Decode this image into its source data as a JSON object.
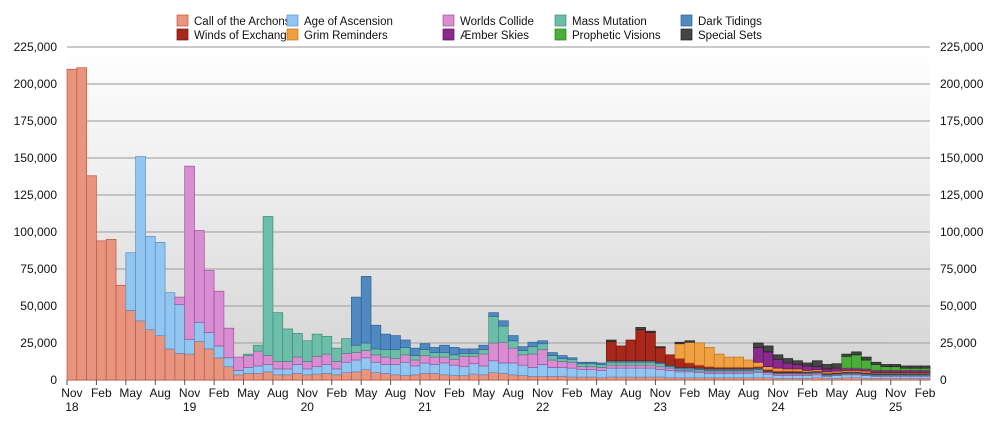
{
  "chart_data": {
    "type": "bar",
    "stacked": true,
    "title": "",
    "xlabel": "",
    "ylabel": "",
    "ylim": [
      0,
      225000
    ],
    "y_ticks": [
      "0",
      "25,000",
      "50,000",
      "75,000",
      "100,000",
      "125,000",
      "150,000",
      "175,000",
      "200,000",
      "225,000"
    ],
    "y_axis_sides": "left-and-right",
    "grid": true,
    "legend_placement": "top",
    "x_range": [
      "Nov 2018",
      "Feb 2026"
    ],
    "x_interval": "monthly",
    "x_ticks": [
      {
        "month": "Nov",
        "year": "18"
      },
      {
        "month": "Feb",
        "year": ""
      },
      {
        "month": "May",
        "year": ""
      },
      {
        "month": "Aug",
        "year": ""
      },
      {
        "month": "Nov",
        "year": "19"
      },
      {
        "month": "Feb",
        "year": ""
      },
      {
        "month": "May",
        "year": ""
      },
      {
        "month": "Aug",
        "year": ""
      },
      {
        "month": "Nov",
        "year": "20"
      },
      {
        "month": "Feb",
        "year": ""
      },
      {
        "month": "May",
        "year": ""
      },
      {
        "month": "Aug",
        "year": ""
      },
      {
        "month": "Nov",
        "year": "21"
      },
      {
        "month": "Feb",
        "year": ""
      },
      {
        "month": "May",
        "year": ""
      },
      {
        "month": "Aug",
        "year": ""
      },
      {
        "month": "Nov",
        "year": "22"
      },
      {
        "month": "Feb",
        "year": ""
      },
      {
        "month": "May",
        "year": ""
      },
      {
        "month": "Aug",
        "year": ""
      },
      {
        "month": "Nov",
        "year": "23"
      },
      {
        "month": "Feb",
        "year": ""
      },
      {
        "month": "May",
        "year": ""
      },
      {
        "month": "Aug",
        "year": ""
      },
      {
        "month": "Nov",
        "year": "24"
      },
      {
        "month": "Feb",
        "year": ""
      },
      {
        "month": "May",
        "year": ""
      },
      {
        "month": "Aug",
        "year": ""
      },
      {
        "month": "Nov",
        "year": "25"
      },
      {
        "month": "Feb",
        "year": ""
      }
    ],
    "series": [
      {
        "name": "Call of the Archons",
        "color": "#e8957f",
        "stroke": "#c4533d",
        "values": [
          210000,
          211000,
          138000,
          94000,
          95000,
          64000,
          47000,
          40000,
          34000,
          30000,
          21000,
          18000,
          17500,
          26000,
          21000,
          15000,
          9000,
          3500,
          4500,
          4500,
          5500,
          3500,
          3500,
          4500,
          3500,
          4000,
          4500,
          3500,
          5000,
          5500,
          7000,
          5000,
          4500,
          3500,
          3000,
          3500,
          4500,
          4500,
          3500,
          3000,
          3000,
          4000,
          3500,
          5000,
          4500,
          3500,
          3000,
          2500,
          2500,
          2500,
          2500,
          2000,
          2000,
          2000,
          1500,
          2000,
          2000,
          2000,
          2000,
          2000,
          2000,
          1500,
          1500,
          1500,
          1500,
          1500,
          1500,
          1500,
          1500,
          1500,
          1500,
          1500,
          1000,
          1000,
          1000,
          1000,
          1500,
          1000,
          1000,
          1500,
          1500,
          1000,
          1000,
          1000,
          1000,
          1000,
          1000,
          1000
        ]
      },
      {
        "name": "Age of Ascension",
        "color": "#92c5f0",
        "stroke": "#5a8fc4",
        "values": [
          0,
          0,
          0,
          0,
          0,
          0,
          39000,
          111000,
          63000,
          63000,
          38000,
          33000,
          10000,
          13000,
          11000,
          8000,
          6000,
          3000,
          4000,
          5000,
          5000,
          4000,
          4000,
          6000,
          4000,
          5000,
          6000,
          4000,
          7000,
          8000,
          8000,
          7000,
          6000,
          7000,
          9000,
          6000,
          7000,
          6000,
          8000,
          7000,
          6000,
          7000,
          6000,
          8000,
          7000,
          8000,
          7000,
          6000,
          8000,
          6000,
          6000,
          6000,
          5000,
          5000,
          5000,
          6000,
          6000,
          6000,
          6000,
          6000,
          5000,
          5000,
          4000,
          4000,
          3500,
          3000,
          3000,
          3000,
          3000,
          3000,
          3500,
          2500,
          2000,
          2000,
          2000,
          2000,
          2000,
          1500,
          2000,
          2000,
          2000,
          2000,
          1500,
          1500,
          1500,
          1500,
          1500,
          1500
        ]
      },
      {
        "name": "Worlds Collide",
        "color": "#d98dd2",
        "stroke": "#a0509a",
        "values": [
          0,
          0,
          0,
          0,
          0,
          0,
          0,
          0,
          0,
          0,
          0,
          5000,
          117000,
          62000,
          42000,
          37000,
          20000,
          9000,
          8000,
          10000,
          6000,
          5000,
          5000,
          5000,
          5000,
          7000,
          7000,
          5000,
          6000,
          5000,
          5000,
          5000,
          5000,
          4000,
          5000,
          4000,
          5000,
          5000,
          4000,
          4000,
          7000,
          5000,
          8000,
          12000,
          14000,
          10000,
          7000,
          9000,
          10000,
          5000,
          4000,
          4000,
          2000,
          2000,
          2000,
          2000,
          2000,
          2000,
          2000,
          2000,
          2000,
          1500,
          1000,
          1000,
          1000,
          1000,
          1000,
          1000,
          1000,
          1000,
          1000,
          1000,
          1000,
          1000,
          1000,
          1000,
          1000,
          500,
          500,
          500,
          500,
          500,
          500,
          500,
          500,
          500,
          500,
          500
        ]
      },
      {
        "name": "Mass Mutation",
        "color": "#6cbea8",
        "stroke": "#3f8c78",
        "values": [
          0,
          0,
          0,
          0,
          0,
          0,
          0,
          0,
          0,
          0,
          0,
          0,
          0,
          0,
          0,
          0,
          0,
          0,
          1000,
          4000,
          94000,
          33000,
          22000,
          16000,
          14000,
          15000,
          12000,
          9000,
          10000,
          5000,
          5000,
          4000,
          5000,
          6000,
          5000,
          3000,
          4000,
          3000,
          3000,
          3000,
          2000,
          2000,
          3000,
          18000,
          11000,
          5000,
          3000,
          5000,
          4000,
          3000,
          2000,
          2000,
          2000,
          2000,
          2000,
          2000,
          2000,
          2000,
          2000,
          2000,
          2000,
          1000,
          1000,
          1000,
          1000,
          1000,
          1000,
          1000,
          1000,
          1000,
          1000,
          500,
          500,
          500,
          500,
          500,
          500,
          500,
          500,
          500,
          500,
          500,
          500,
          500,
          500,
          500,
          500,
          500
        ]
      },
      {
        "name": "Dark Tidings",
        "color": "#5089c2",
        "stroke": "#2f5f94",
        "values": [
          0,
          0,
          0,
          0,
          0,
          0,
          0,
          0,
          0,
          0,
          0,
          0,
          0,
          0,
          0,
          0,
          0,
          0,
          0,
          0,
          0,
          0,
          0,
          0,
          0,
          0,
          0,
          0,
          0,
          32500,
          45000,
          16000,
          10500,
          9500,
          5000,
          5000,
          4000,
          3500,
          5000,
          5000,
          3000,
          3000,
          3000,
          2500,
          3500,
          3500,
          2500,
          3000,
          2000,
          2000,
          2000,
          1000,
          1000,
          1000,
          1000,
          1000,
          1000,
          1000,
          1000,
          1000,
          1000,
          1000,
          1000,
          1000,
          1000,
          1000,
          1000,
          1000,
          1000,
          1000,
          1000,
          500,
          500,
          500,
          500,
          500,
          500,
          500,
          500,
          500,
          500,
          500,
          500,
          500,
          500,
          500,
          500,
          500
        ]
      },
      {
        "name": "Winds of Exchange",
        "color": "#a8281b",
        "stroke": "#6e150c",
        "values": [
          0,
          0,
          0,
          0,
          0,
          0,
          0,
          0,
          0,
          0,
          0,
          0,
          0,
          0,
          0,
          0,
          0,
          0,
          0,
          0,
          0,
          0,
          0,
          0,
          0,
          0,
          0,
          0,
          0,
          0,
          0,
          0,
          0,
          0,
          0,
          0,
          0,
          0,
          0,
          0,
          0,
          0,
          0,
          0,
          0,
          0,
          0,
          0,
          0,
          0,
          0,
          0,
          0,
          0,
          0,
          13000,
          10000,
          14000,
          21000,
          19000,
          10000,
          7000,
          6000,
          3000,
          2000,
          1500,
          1000,
          1000,
          1000,
          1000,
          1000,
          1000,
          1000,
          1000,
          1000,
          500,
          500,
          500,
          500,
          500,
          500,
          500,
          500,
          500,
          500,
          500,
          500,
          500
        ]
      },
      {
        "name": "Grim Reminders",
        "color": "#f0a043",
        "stroke": "#c0741a",
        "values": [
          0,
          0,
          0,
          0,
          0,
          0,
          0,
          0,
          0,
          0,
          0,
          0,
          0,
          0,
          0,
          0,
          0,
          0,
          0,
          0,
          0,
          0,
          0,
          0,
          0,
          0,
          0,
          0,
          0,
          0,
          0,
          0,
          0,
          0,
          0,
          0,
          0,
          0,
          0,
          0,
          0,
          0,
          0,
          0,
          0,
          0,
          0,
          0,
          0,
          0,
          0,
          0,
          0,
          0,
          0,
          0,
          0,
          0,
          0,
          0,
          0,
          0,
          10000,
          14000,
          15000,
          13000,
          9000,
          7000,
          7000,
          5000,
          3000,
          2000,
          2000,
          1500,
          1500,
          1000,
          1000,
          1000,
          1000,
          1000,
          1000,
          1000,
          500,
          500,
          500,
          500,
          500,
          500
        ]
      },
      {
        "name": "Æmber Skies",
        "color": "#8a2a8c",
        "stroke": "#5a145c",
        "values": [
          0,
          0,
          0,
          0,
          0,
          0,
          0,
          0,
          0,
          0,
          0,
          0,
          0,
          0,
          0,
          0,
          0,
          0,
          0,
          0,
          0,
          0,
          0,
          0,
          0,
          0,
          0,
          0,
          0,
          0,
          0,
          0,
          0,
          0,
          0,
          0,
          0,
          0,
          0,
          0,
          0,
          0,
          0,
          0,
          0,
          0,
          0,
          0,
          0,
          0,
          0,
          0,
          0,
          0,
          0,
          0,
          0,
          0,
          0,
          0,
          0,
          0,
          0,
          0,
          0,
          0,
          0,
          0,
          0,
          0,
          10000,
          10000,
          6000,
          4000,
          3000,
          3000,
          2000,
          2000,
          2000,
          1500,
          1500,
          1500,
          1500,
          1500,
          1500,
          1500,
          1500,
          1500
        ]
      },
      {
        "name": "Prophetic Visions",
        "color": "#4bae3a",
        "stroke": "#2c7a20",
        "values": [
          0,
          0,
          0,
          0,
          0,
          0,
          0,
          0,
          0,
          0,
          0,
          0,
          0,
          0,
          0,
          0,
          0,
          0,
          0,
          0,
          0,
          0,
          0,
          0,
          0,
          0,
          0,
          0,
          0,
          0,
          0,
          0,
          0,
          0,
          0,
          0,
          0,
          0,
          0,
          0,
          0,
          0,
          0,
          0,
          0,
          0,
          0,
          0,
          0,
          0,
          0,
          0,
          0,
          0,
          0,
          0,
          0,
          0,
          0,
          0,
          0,
          0,
          0,
          0,
          0,
          0,
          0,
          0,
          0,
          0,
          0,
          0,
          0,
          0,
          0,
          0,
          0,
          0,
          0,
          8000,
          9000,
          6000,
          4000,
          2500,
          2500,
          1500,
          1500,
          1500
        ]
      },
      {
        "name": "Special Sets",
        "color": "#454545",
        "stroke": "#222222",
        "values": [
          0,
          0,
          0,
          0,
          0,
          0,
          0,
          0,
          0,
          0,
          0,
          0,
          0,
          0,
          0,
          0,
          0,
          0,
          0,
          0,
          0,
          0,
          0,
          0,
          0,
          0,
          0,
          0,
          0,
          0,
          0,
          0,
          0,
          0,
          0,
          0,
          0,
          0,
          0,
          0,
          0,
          0,
          0,
          0,
          0,
          0,
          0,
          0,
          0,
          0,
          0,
          0,
          0,
          0,
          0,
          1000,
          0,
          0,
          1500,
          1000,
          500,
          0,
          1000,
          1000,
          0,
          0,
          0,
          0,
          0,
          0,
          3000,
          4000,
          3000,
          3000,
          2500,
          2000,
          4000,
          3000,
          3000,
          1500,
          2000,
          2000,
          1500,
          1500,
          1500,
          1500,
          1500,
          1500
        ]
      }
    ]
  }
}
